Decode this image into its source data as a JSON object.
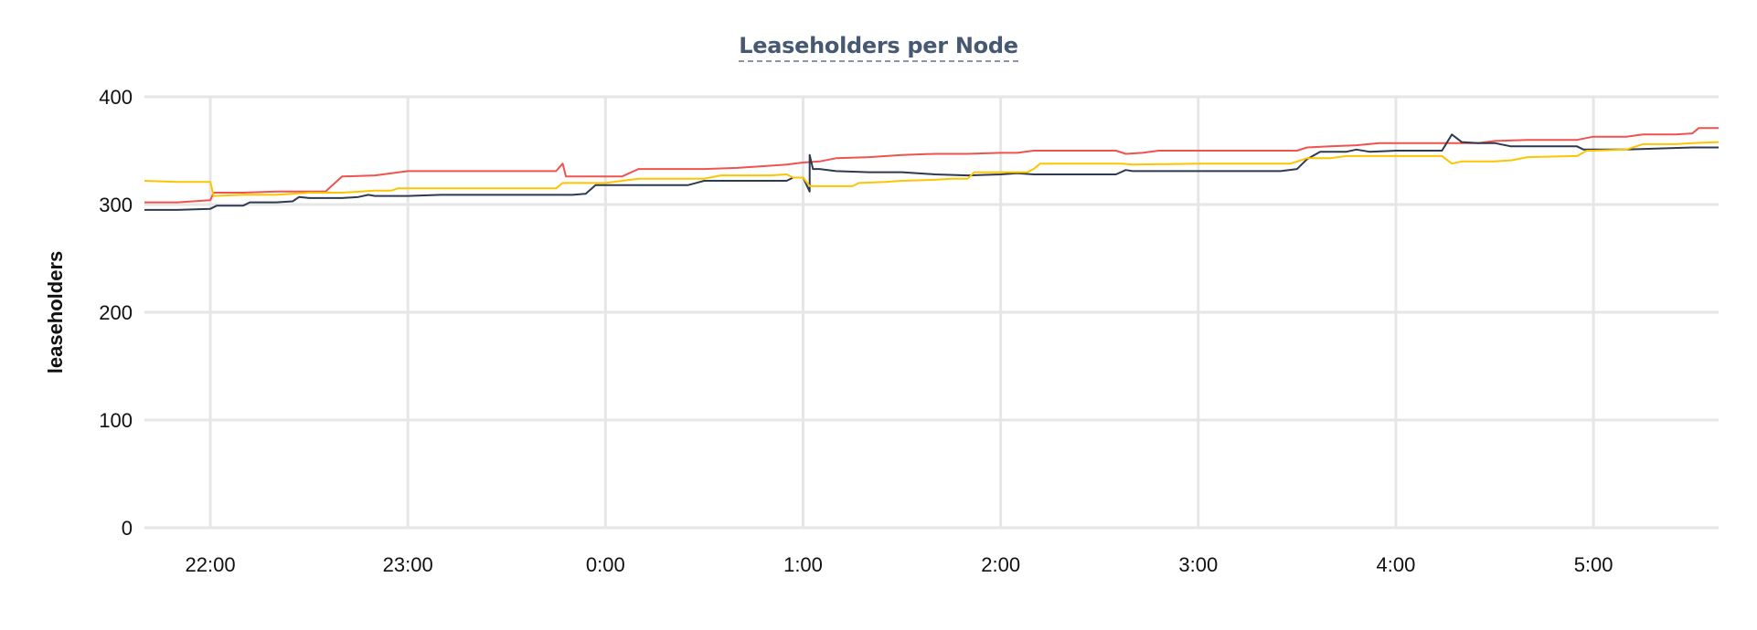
{
  "chart_data": {
    "type": "line",
    "title": "Leaseholders per Node",
    "xlabel": "",
    "ylabel": "leaseholders",
    "x_domain": [
      "21:40",
      "5:38"
    ],
    "xticks": [
      "22:00",
      "23:00",
      "0:00",
      "1:00",
      "2:00",
      "3:00",
      "4:00",
      "5:00"
    ],
    "yticks": [
      0,
      100,
      200,
      300,
      400
    ],
    "ylim": [
      0,
      400
    ],
    "grid": true,
    "legend": "none",
    "series": [
      {
        "color": "#ef5350",
        "points": [
          [
            "21:40",
            302
          ],
          [
            "21:50",
            302
          ],
          [
            "22:00",
            304
          ],
          [
            "22:01",
            311
          ],
          [
            "22:10",
            311
          ],
          [
            "22:20",
            312
          ],
          [
            "22:35",
            312
          ],
          [
            "22:40",
            326
          ],
          [
            "22:50",
            327
          ],
          [
            "23:00",
            331
          ],
          [
            "23:30",
            331
          ],
          [
            "23:45",
            331
          ],
          [
            "23:47",
            338
          ],
          [
            "23:48",
            326
          ],
          [
            "23:55",
            326
          ],
          [
            "0:00",
            326
          ],
          [
            "0:05",
            326
          ],
          [
            "0:10",
            333
          ],
          [
            "0:30",
            333
          ],
          [
            "0:40",
            334
          ],
          [
            "0:50",
            336
          ],
          [
            "0:55",
            337
          ],
          [
            "1:00",
            339
          ],
          [
            "1:05",
            340
          ],
          [
            "1:10",
            343
          ],
          [
            "1:20",
            344
          ],
          [
            "1:30",
            346
          ],
          [
            "1:40",
            347
          ],
          [
            "1:50",
            347
          ],
          [
            "2:00",
            348
          ],
          [
            "2:05",
            348
          ],
          [
            "2:10",
            350
          ],
          [
            "2:30",
            350
          ],
          [
            "2:35",
            350
          ],
          [
            "2:38",
            347
          ],
          [
            "2:43",
            348
          ],
          [
            "2:48",
            350
          ],
          [
            "3:10",
            350
          ],
          [
            "3:20",
            350
          ],
          [
            "3:30",
            350
          ],
          [
            "3:33",
            353
          ],
          [
            "3:40",
            354
          ],
          [
            "3:48",
            355
          ],
          [
            "3:55",
            357
          ],
          [
            "4:00",
            357
          ],
          [
            "4:15",
            357
          ],
          [
            "4:25",
            357
          ],
          [
            "4:30",
            359
          ],
          [
            "4:40",
            360
          ],
          [
            "4:50",
            360
          ],
          [
            "4:55",
            360
          ],
          [
            "5:00",
            363
          ],
          [
            "5:10",
            363
          ],
          [
            "5:15",
            365
          ],
          [
            "5:25",
            365
          ],
          [
            "5:30",
            366
          ],
          [
            "5:32",
            371
          ],
          [
            "5:38",
            371
          ]
        ]
      },
      {
        "color": "#2e3a50",
        "points": [
          [
            "21:40",
            295
          ],
          [
            "21:50",
            295
          ],
          [
            "22:00",
            296
          ],
          [
            "22:02",
            299
          ],
          [
            "22:10",
            299
          ],
          [
            "22:12",
            302
          ],
          [
            "22:20",
            302
          ],
          [
            "22:25",
            303
          ],
          [
            "22:27",
            307
          ],
          [
            "22:30",
            306
          ],
          [
            "22:40",
            306
          ],
          [
            "22:45",
            307
          ],
          [
            "22:48",
            309
          ],
          [
            "22:50",
            308
          ],
          [
            "23:00",
            308
          ],
          [
            "23:10",
            309
          ],
          [
            "23:40",
            309
          ],
          [
            "23:50",
            309
          ],
          [
            "23:54",
            310
          ],
          [
            "23:57",
            318
          ],
          [
            "0:00",
            318
          ],
          [
            "0:20",
            318
          ],
          [
            "0:25",
            318
          ],
          [
            "0:30",
            322
          ],
          [
            "0:50",
            322
          ],
          [
            "0:55",
            322
          ],
          [
            "0:57",
            325
          ],
          [
            "1:00",
            325
          ],
          [
            "1:02",
            312
          ],
          [
            "1:02",
            346
          ],
          [
            "1:03",
            333
          ],
          [
            "1:05",
            333
          ],
          [
            "1:10",
            331
          ],
          [
            "1:20",
            330
          ],
          [
            "1:30",
            330
          ],
          [
            "1:40",
            328
          ],
          [
            "1:50",
            327
          ],
          [
            "2:00",
            328
          ],
          [
            "2:05",
            329
          ],
          [
            "2:10",
            328
          ],
          [
            "2:20",
            328
          ],
          [
            "2:30",
            328
          ],
          [
            "2:35",
            328
          ],
          [
            "2:38",
            332
          ],
          [
            "2:40",
            331
          ],
          [
            "3:00",
            331
          ],
          [
            "3:10",
            331
          ],
          [
            "3:25",
            331
          ],
          [
            "3:30",
            333
          ],
          [
            "3:33",
            342
          ],
          [
            "3:37",
            349
          ],
          [
            "3:45",
            349
          ],
          [
            "3:48",
            351
          ],
          [
            "3:52",
            349
          ],
          [
            "4:00",
            350
          ],
          [
            "4:10",
            350
          ],
          [
            "4:14",
            350
          ],
          [
            "4:17",
            365
          ],
          [
            "4:20",
            358
          ],
          [
            "4:25",
            357
          ],
          [
            "4:30",
            357
          ],
          [
            "4:35",
            354
          ],
          [
            "4:50",
            354
          ],
          [
            "4:55",
            354
          ],
          [
            "4:57",
            351
          ],
          [
            "5:10",
            351
          ],
          [
            "5:20",
            352
          ],
          [
            "5:30",
            353
          ],
          [
            "5:38",
            353
          ]
        ]
      },
      {
        "color": "#ffc400",
        "points": [
          [
            "21:40",
            322
          ],
          [
            "21:50",
            321
          ],
          [
            "22:00",
            321
          ],
          [
            "22:01",
            308
          ],
          [
            "22:10",
            309
          ],
          [
            "22:20",
            309
          ],
          [
            "22:30",
            311
          ],
          [
            "22:40",
            311
          ],
          [
            "22:50",
            313
          ],
          [
            "22:55",
            313
          ],
          [
            "22:57",
            315
          ],
          [
            "23:00",
            315
          ],
          [
            "23:40",
            315
          ],
          [
            "23:45",
            315
          ],
          [
            "23:47",
            320
          ],
          [
            "23:55",
            320
          ],
          [
            "0:00",
            320
          ],
          [
            "0:10",
            324
          ],
          [
            "0:20",
            324
          ],
          [
            "0:30",
            324
          ],
          [
            "0:35",
            327
          ],
          [
            "0:50",
            327
          ],
          [
            "0:55",
            328
          ],
          [
            "0:57",
            325
          ],
          [
            "1:00",
            325
          ],
          [
            "1:02",
            317
          ],
          [
            "1:10",
            317
          ],
          [
            "1:15",
            317
          ],
          [
            "1:17",
            320
          ],
          [
            "1:25",
            321
          ],
          [
            "1:30",
            322
          ],
          [
            "1:40",
            323
          ],
          [
            "1:45",
            324
          ],
          [
            "1:50",
            324
          ],
          [
            "1:52",
            330
          ],
          [
            "2:00",
            330
          ],
          [
            "2:08",
            330
          ],
          [
            "2:10",
            333
          ],
          [
            "2:12",
            338
          ],
          [
            "2:30",
            338
          ],
          [
            "2:37",
            338
          ],
          [
            "2:40",
            337
          ],
          [
            "3:00",
            338
          ],
          [
            "3:10",
            338
          ],
          [
            "3:20",
            338
          ],
          [
            "3:28",
            338
          ],
          [
            "3:33",
            343
          ],
          [
            "3:40",
            343
          ],
          [
            "3:45",
            345
          ],
          [
            "4:00",
            345
          ],
          [
            "4:10",
            345
          ],
          [
            "4:14",
            345
          ],
          [
            "4:17",
            338
          ],
          [
            "4:20",
            340
          ],
          [
            "4:30",
            340
          ],
          [
            "4:35",
            341
          ],
          [
            "4:40",
            344
          ],
          [
            "4:55",
            345
          ],
          [
            "4:58",
            350
          ],
          [
            "5:00",
            350
          ],
          [
            "5:10",
            351
          ],
          [
            "5:15",
            356
          ],
          [
            "5:25",
            356
          ],
          [
            "5:30",
            357
          ],
          [
            "5:38",
            358
          ]
        ]
      }
    ]
  }
}
